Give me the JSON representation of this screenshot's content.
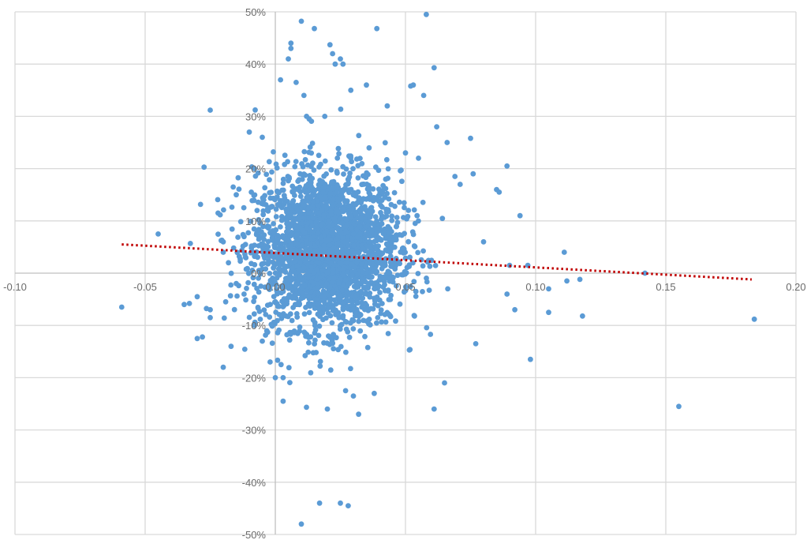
{
  "chart_data": {
    "type": "scatter",
    "title": "",
    "xlabel": "",
    "ylabel": "",
    "xlim": [
      -0.1,
      0.2
    ],
    "ylim": [
      -0.5,
      0.5
    ],
    "x_ticks": [
      -0.1,
      -0.05,
      0.0,
      0.05,
      0.1,
      0.15,
      0.2
    ],
    "x_tick_labels": [
      "-0.10",
      "-0.05",
      "0.00",
      "0.05",
      "0.10",
      "0.15",
      "0.20"
    ],
    "y_ticks": [
      -0.5,
      -0.4,
      -0.3,
      -0.2,
      -0.1,
      0.0,
      0.1,
      0.2,
      0.3,
      0.4,
      0.5
    ],
    "y_tick_labels": [
      "-50%",
      "-40%",
      "-30%",
      "-20%",
      "-10%",
      "0%",
      "10%",
      "20%",
      "30%",
      "40%",
      "50%"
    ],
    "grid": true,
    "legend": "none",
    "marker_color": "#5b9bd5",
    "trendline": {
      "type": "linear",
      "style": "dotted",
      "color": "#c00000",
      "points": [
        [
          -0.059,
          0.055
        ],
        [
          0.183,
          -0.012
        ]
      ]
    },
    "points": [
      [
        -0.059,
        -0.065
      ],
      [
        -0.045,
        0.075
      ],
      [
        -0.035,
        -0.06
      ],
      [
        -0.033,
        -0.058
      ],
      [
        -0.03,
        -0.125
      ],
      [
        -0.03,
        -0.045
      ],
      [
        -0.025,
        -0.07
      ],
      [
        -0.025,
        -0.085
      ],
      [
        -0.025,
        0.312
      ],
      [
        -0.028,
        -0.122
      ],
      [
        -0.022,
        0.115
      ],
      [
        -0.02,
        0.06
      ],
      [
        -0.02,
        0.04
      ],
      [
        -0.02,
        -0.18
      ],
      [
        -0.018,
        0.02
      ],
      [
        -0.017,
        -0.14
      ],
      [
        -0.015,
        0.15
      ],
      [
        -0.015,
        -0.02
      ],
      [
        -0.012,
        0.07
      ],
      [
        -0.012,
        -0.04
      ],
      [
        -0.01,
        0.27
      ],
      [
        -0.008,
        0.2
      ],
      [
        -0.008,
        -0.1
      ],
      [
        -0.007,
        0.12
      ],
      [
        -0.005,
        -0.13
      ],
      [
        -0.005,
        0.26
      ],
      [
        -0.003,
        0.09
      ],
      [
        -0.002,
        -0.17
      ],
      [
        0.0,
        -0.2
      ],
      [
        0.002,
        0.37
      ],
      [
        0.003,
        -0.245
      ],
      [
        0.003,
        -0.2
      ],
      [
        0.005,
        0.41
      ],
      [
        0.006,
        0.44
      ],
      [
        0.006,
        0.43
      ],
      [
        0.008,
        0.365
      ],
      [
        0.01,
        -0.48
      ],
      [
        0.01,
        0.482
      ],
      [
        0.011,
        0.34
      ],
      [
        0.012,
        0.3
      ],
      [
        0.013,
        0.295
      ],
      [
        0.015,
        0.468
      ],
      [
        0.017,
        -0.44
      ],
      [
        0.019,
        0.3
      ],
      [
        0.02,
        -0.26
      ],
      [
        0.021,
        0.437
      ],
      [
        0.022,
        0.42
      ],
      [
        0.023,
        0.4
      ],
      [
        0.025,
        -0.44
      ],
      [
        0.025,
        0.41
      ],
      [
        0.026,
        0.4
      ],
      [
        0.027,
        -0.225
      ],
      [
        0.028,
        -0.445
      ],
      [
        0.029,
        0.35
      ],
      [
        0.03,
        -0.235
      ],
      [
        0.032,
        -0.27
      ],
      [
        0.035,
        0.36
      ],
      [
        0.038,
        -0.23
      ],
      [
        0.039,
        0.468
      ],
      [
        0.043,
        0.32
      ],
      [
        0.05,
        0.23
      ],
      [
        0.052,
        0.358
      ],
      [
        0.053,
        0.36
      ],
      [
        0.054,
        -0.035
      ],
      [
        0.055,
        0.22
      ],
      [
        0.057,
        0.34
      ],
      [
        0.058,
        0.495
      ],
      [
        0.061,
        0.393
      ],
      [
        0.061,
        -0.26
      ],
      [
        0.062,
        0.28
      ],
      [
        0.065,
        -0.21
      ],
      [
        0.066,
        0.25
      ],
      [
        0.069,
        0.185
      ],
      [
        0.071,
        0.17
      ],
      [
        0.075,
        0.258
      ],
      [
        0.076,
        0.19
      ],
      [
        0.077,
        -0.135
      ],
      [
        0.08,
        0.06
      ],
      [
        0.085,
        0.16
      ],
      [
        0.086,
        0.155
      ],
      [
        0.089,
        0.205
      ],
      [
        0.089,
        -0.04
      ],
      [
        0.09,
        0.015
      ],
      [
        0.092,
        -0.07
      ],
      [
        0.094,
        0.11
      ],
      [
        0.097,
        0.015
      ],
      [
        0.098,
        -0.165
      ],
      [
        0.105,
        -0.03
      ],
      [
        0.105,
        -0.075
      ],
      [
        0.111,
        0.04
      ],
      [
        0.112,
        -0.015
      ],
      [
        0.117,
        -0.012
      ],
      [
        0.118,
        -0.082
      ],
      [
        0.142,
        0.0
      ],
      [
        0.155,
        -0.255
      ],
      [
        0.184,
        -0.088
      ]
    ]
  }
}
